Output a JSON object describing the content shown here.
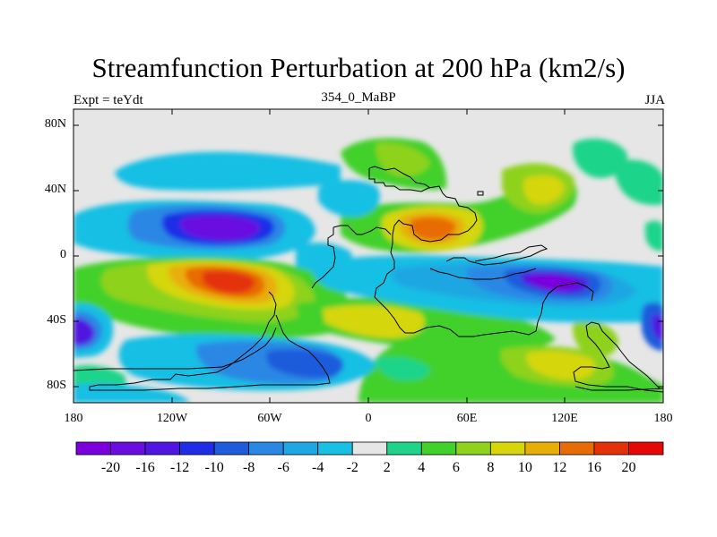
{
  "title": "Streamfunction Perturbation at 200 hPa (km2/s)",
  "subtitle_left": "Expt = teYdt",
  "subtitle_center": "354_0_MaBP",
  "subtitle_right": "JJA",
  "y_ticks": [
    "80N",
    "40N",
    "0",
    "40S",
    "80S"
  ],
  "x_ticks": [
    "180",
    "120W",
    "60W",
    "0",
    "60E",
    "120E",
    "180"
  ],
  "colorbar": {
    "labels": [
      "-20",
      "-16",
      "-12",
      "-10",
      "-8",
      "-6",
      "-4",
      "-2",
      "2",
      "4",
      "6",
      "8",
      "10",
      "12",
      "16",
      "20"
    ],
    "colors": [
      "#7a00dc",
      "#6a0ee0",
      "#5015e0",
      "#1f2ee6",
      "#1e5cdc",
      "#2a88e4",
      "#1ea7e2",
      "#19bfe4",
      "#e6e6e6",
      "#1fd48a",
      "#42d02a",
      "#8ed21e",
      "#d6d60a",
      "#e8ae08",
      "#e86c06",
      "#e43208",
      "#e40808"
    ]
  }
}
